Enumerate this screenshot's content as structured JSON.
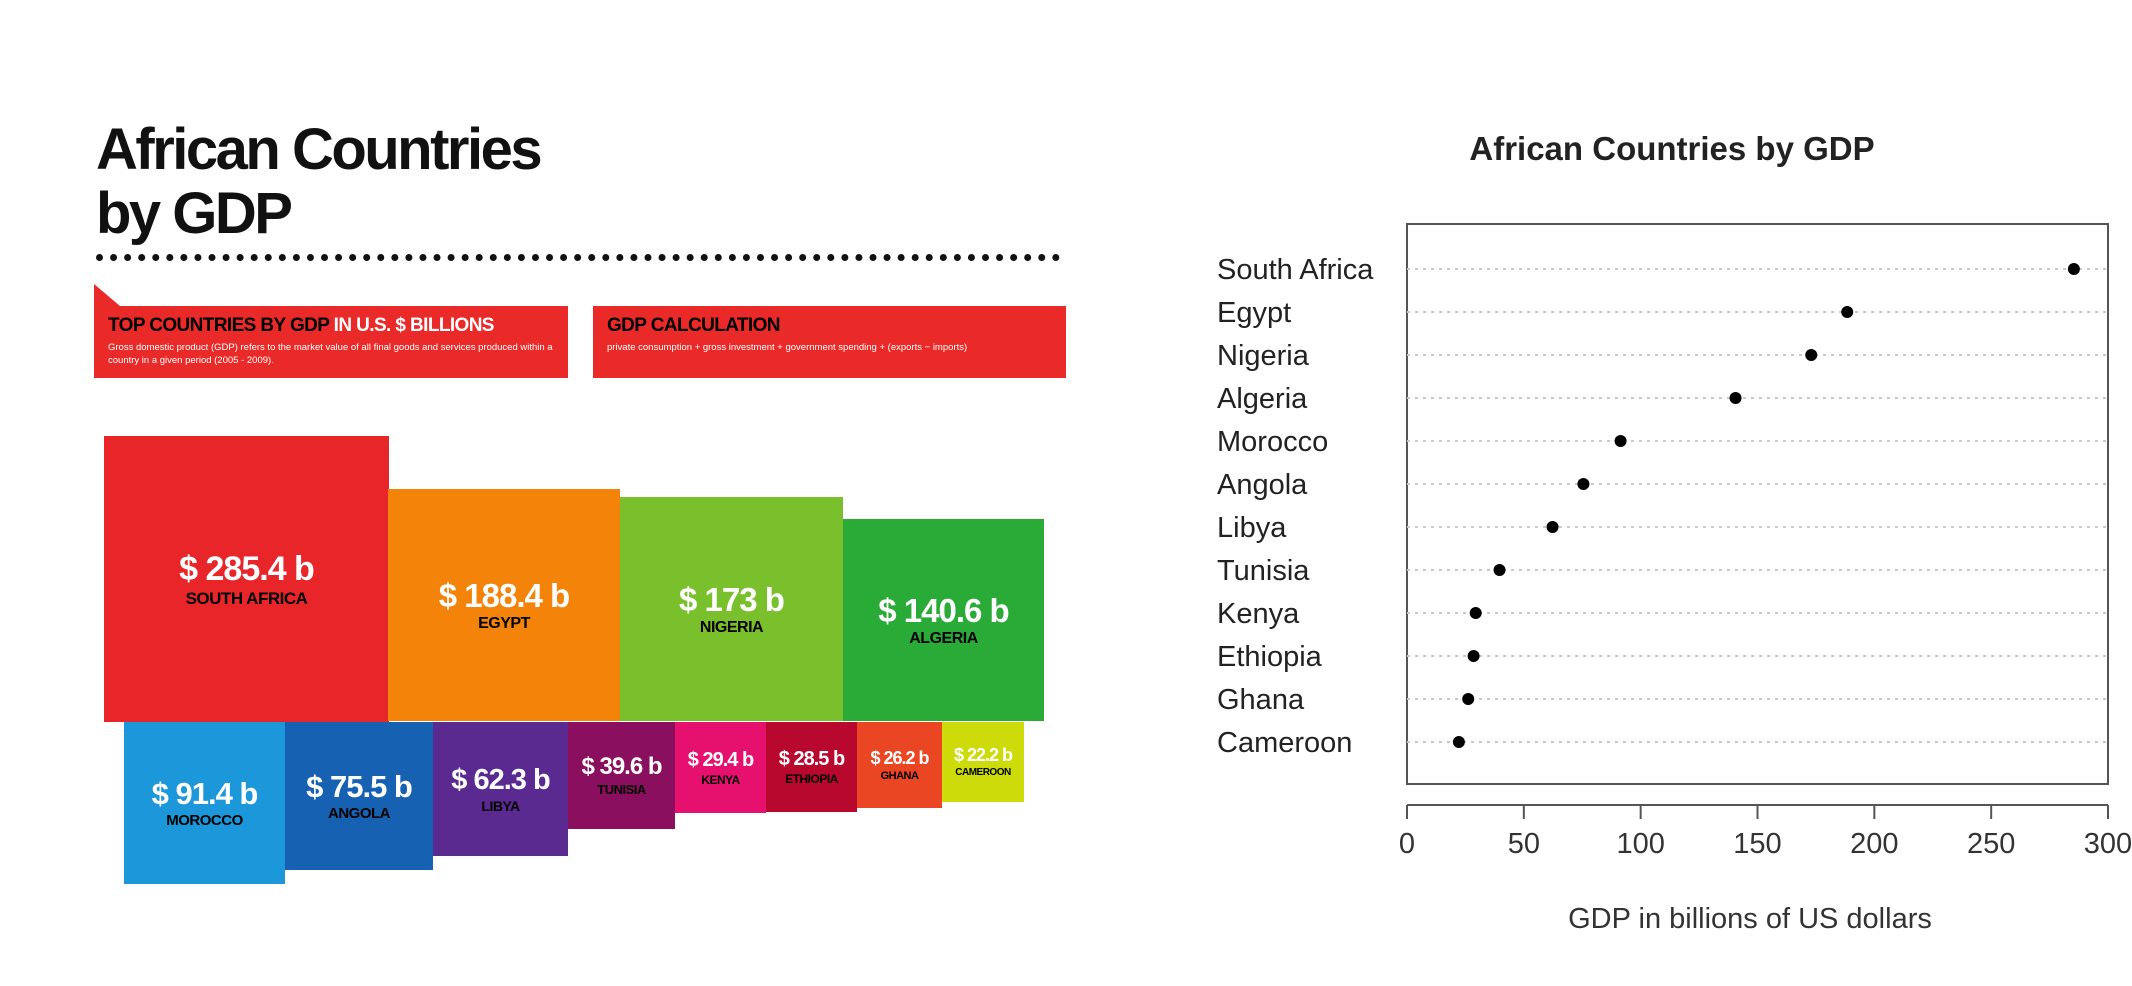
{
  "infographic": {
    "title_line1": "African Countries",
    "title_line2": "by GDP",
    "banner_top": {
      "heading_black": "TOP COUNTRIES BY GDP",
      "heading_white": " IN U.S. $ BILLIONS",
      "description": "Gross domestic product (GDP) refers to the market value of all final goods and services produced within a country in a given period (2005 - 2009)."
    },
    "banner_calc": {
      "heading": "GDP CALCULATION",
      "description": "private consumption + gross investment + government spending + (exports − imports)"
    },
    "blocks": [
      {
        "value": "$ 285.4 b",
        "country": "SOUTH AFRICA",
        "color": "#e8262a"
      },
      {
        "value": "$ 188.4 b",
        "country": "EGYPT",
        "color": "#f4830a"
      },
      {
        "value": "$ 173 b",
        "country": "NIGERIA",
        "color": "#7ac02d"
      },
      {
        "value": "$ 140.6 b",
        "country": "ALGERIA",
        "color": "#2aab38"
      },
      {
        "value": "$ 91.4 b",
        "country": "MOROCCO",
        "color": "#1b97da"
      },
      {
        "value": "$ 75.5 b",
        "country": "ANGOLA",
        "color": "#1761b3"
      },
      {
        "value": "$ 62.3 b",
        "country": "LIBYA",
        "color": "#5a2a91"
      },
      {
        "value": "$ 39.6 b",
        "country": "TUNISIA",
        "color": "#8a0f5f"
      },
      {
        "value": "$ 29.4 b",
        "country": "KENYA",
        "color": "#e6106f"
      },
      {
        "value": "$ 28.5 b",
        "country": "ETHIOPIA",
        "color": "#b8082d"
      },
      {
        "value": "$ 26.2 b",
        "country": "GHANA",
        "color": "#ea4624"
      },
      {
        "value": "$ 22.2 b",
        "country": "CAMEROON",
        "color": "#cddb0b"
      }
    ]
  },
  "chart_data": {
    "type": "scatter",
    "title": "African Countries by GDP",
    "xlabel": "GDP in billions of US dollars",
    "ylabel": "",
    "xlim": [
      0,
      300
    ],
    "xticks": [
      0,
      50,
      100,
      150,
      200,
      250,
      300
    ],
    "grid": "horizontal dotted",
    "categories": [
      "South Africa",
      "Egypt",
      "Nigeria",
      "Algeria",
      "Morocco",
      "Angola",
      "Libya",
      "Tunisia",
      "Kenya",
      "Ethiopia",
      "Ghana",
      "Cameroon"
    ],
    "values": [
      285.4,
      188.4,
      173,
      140.6,
      91.4,
      75.5,
      62.3,
      39.6,
      29.4,
      28.5,
      26.2,
      22.2
    ],
    "point_color": "#000000"
  }
}
